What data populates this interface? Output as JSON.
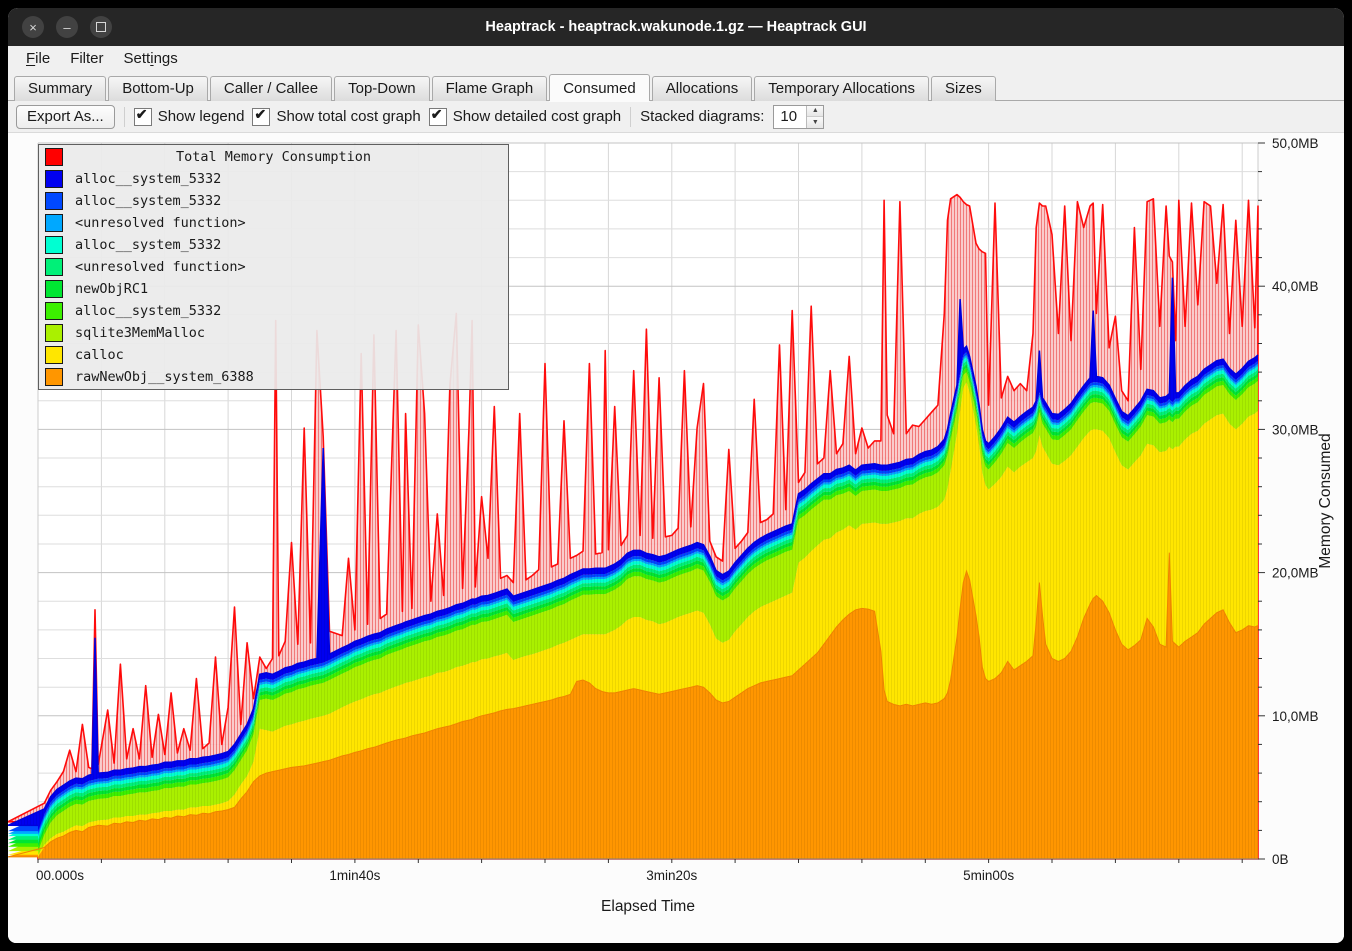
{
  "window": {
    "title": "Heaptrack - heaptrack.wakunode.1.gz — Heaptrack GUI",
    "controls": [
      {
        "name": "close",
        "glyph": "×"
      },
      {
        "name": "minimize",
        "glyph": "–"
      },
      {
        "name": "maximize",
        "glyph": ""
      }
    ]
  },
  "menu": {
    "items": [
      {
        "label": "File",
        "accel_index": 0
      },
      {
        "label": "Filter",
        "accel_index": -1
      },
      {
        "label": "Settings",
        "accel_index": 4
      }
    ]
  },
  "tabs": {
    "active": "Consumed",
    "items": [
      "Summary",
      "Bottom-Up",
      "Caller / Callee",
      "Top-Down",
      "Flame Graph",
      "Consumed",
      "Allocations",
      "Temporary Allocations",
      "Sizes"
    ]
  },
  "toolbar": {
    "export_label": "Export As...",
    "checkboxes": [
      {
        "label": "Show legend",
        "checked": true
      },
      {
        "label": "Show total cost graph",
        "checked": true
      },
      {
        "label": "Show detailed cost graph",
        "checked": true
      }
    ],
    "stacked_label": "Stacked diagrams:",
    "stacked_value": "10"
  },
  "chart_data": {
    "type": "area",
    "stacked": true,
    "xlabel": "Elapsed Time",
    "ylabel": "Memory Consumed",
    "xlim": [
      0,
      385
    ],
    "ylim": [
      0,
      50
    ],
    "x_tick_seconds": [
      0,
      100,
      200,
      300
    ],
    "x_tick_labels": [
      "00.000s",
      "1min40s",
      "3min20s",
      "5min00s"
    ],
    "x_minor_interval_s": 20,
    "y_tick_labels": [
      "0B",
      "10,0MB",
      "20,0MB",
      "30,0MB",
      "40,0MB",
      "50,0MB"
    ],
    "y_major_mb": 10,
    "y_minor_mb": 2,
    "grid": true,
    "legend_position": "top-left",
    "legend": [
      {
        "label": "Total Memory Consumption",
        "color": "#ff0000",
        "is_title": true
      },
      {
        "label": "alloc__system_5332",
        "color": "#0000f0"
      },
      {
        "label": "alloc__system_5332",
        "color": "#0048ff"
      },
      {
        "label": "<unresolved function>",
        "color": "#00a8ff"
      },
      {
        "label": "alloc__system_5332",
        "color": "#00ffd2"
      },
      {
        "label": "<unresolved function>",
        "color": "#00f078"
      },
      {
        "label": "newObjRC1",
        "color": "#00e632"
      },
      {
        "label": "alloc__system_5332",
        "color": "#3cf000"
      },
      {
        "label": "sqlite3MemMalloc",
        "color": "#aaf000"
      },
      {
        "label": "calloc",
        "color": "#ffe600"
      },
      {
        "label": "rawNewObj__system_6388",
        "color": "#ff9600"
      }
    ],
    "x": [
      0,
      2,
      4,
      6,
      8,
      10,
      12,
      14,
      16,
      17,
      18,
      19,
      22,
      24,
      26,
      28,
      30,
      32,
      34,
      36,
      38,
      40,
      42,
      44,
      46,
      48,
      50,
      52,
      54,
      56,
      58,
      60,
      62,
      64,
      66,
      68,
      70,
      72,
      74,
      75,
      76,
      78,
      80,
      82,
      84,
      86,
      88,
      90,
      92,
      96,
      98,
      100,
      102,
      104,
      106,
      108,
      110,
      113,
      115,
      116,
      118,
      120,
      122,
      124,
      126,
      128,
      130,
      132,
      134,
      136,
      137,
      138,
      140,
      142,
      144,
      146,
      148,
      150,
      152,
      154,
      156,
      158,
      160,
      162,
      164,
      166,
      168,
      170,
      172,
      174,
      176,
      178,
      179,
      180,
      182,
      184,
      186,
      188,
      190,
      192,
      194,
      196,
      198,
      200,
      202,
      204,
      206,
      208,
      210,
      212,
      214,
      216,
      218,
      220,
      222,
      224,
      226,
      228,
      230,
      232,
      234,
      236,
      238,
      240,
      242,
      244,
      246,
      248,
      250,
      252,
      254,
      256,
      258,
      260,
      262,
      264,
      266,
      267,
      268,
      270,
      272,
      274,
      276,
      278,
      280,
      282,
      284,
      286,
      287,
      288,
      290,
      291,
      292,
      293,
      294,
      296,
      297,
      298,
      299,
      300,
      302,
      304,
      306,
      308,
      310,
      312,
      314,
      315,
      316,
      317,
      318,
      320,
      322,
      324,
      326,
      328,
      330,
      332,
      333,
      334,
      336,
      338,
      340,
      342,
      344,
      346,
      348,
      350,
      352,
      354,
      356,
      357,
      358,
      359,
      360,
      362,
      364,
      366,
      368,
      370,
      372,
      374,
      376,
      378,
      380,
      382,
      384,
      385
    ],
    "stack_series": [
      {
        "name": "rawNewObj__system_6388",
        "color": "#ff9600",
        "values": [
          0.15,
          0.8,
          1.2,
          1.45,
          1.6,
          1.85,
          2.0,
          1.9,
          2.2,
          2.25,
          2.3,
          2.35,
          2.3,
          2.5,
          2.45,
          2.6,
          2.55,
          2.7,
          2.65,
          2.8,
          2.75,
          2.9,
          2.85,
          3.0,
          2.95,
          3.1,
          3.05,
          3.2,
          3.15,
          3.3,
          3.35,
          3.45,
          3.6,
          4.2,
          4.7,
          5.4,
          5.8,
          6.0,
          6.1,
          6.15,
          6.2,
          6.3,
          6.4,
          6.45,
          6.5,
          6.6,
          6.7,
          6.8,
          6.9,
          7.2,
          7.3,
          7.45,
          7.55,
          7.7,
          7.8,
          7.95,
          8.1,
          8.3,
          8.4,
          8.45,
          8.6,
          8.7,
          8.8,
          8.95,
          9.1,
          9.2,
          9.3,
          9.45,
          9.6,
          9.7,
          9.75,
          9.85,
          10.0,
          10.1,
          10.2,
          10.35,
          10.45,
          10.5,
          10.6,
          10.7,
          10.8,
          10.9,
          11.0,
          11.1,
          11.25,
          11.35,
          11.5,
          12.4,
          12.5,
          12.3,
          11.9,
          11.7,
          11.65,
          11.6,
          11.6,
          11.7,
          11.8,
          11.9,
          11.8,
          11.7,
          11.6,
          11.5,
          11.6,
          11.7,
          11.8,
          11.9,
          12.0,
          12.1,
          12.0,
          11.6,
          11.1,
          10.9,
          11.0,
          11.3,
          11.6,
          11.9,
          12.1,
          12.3,
          12.4,
          12.5,
          12.6,
          12.7,
          12.8,
          13.2,
          13.6,
          14.0,
          14.4,
          15.0,
          15.6,
          16.2,
          16.7,
          17.1,
          17.4,
          17.5,
          17.45,
          17.3,
          14.5,
          11.8,
          11.0,
          10.8,
          10.7,
          10.8,
          10.7,
          10.8,
          10.9,
          10.8,
          10.9,
          11.2,
          11.6,
          12.5,
          15.5,
          17.5,
          19.3,
          20.1,
          19.5,
          17.0,
          15.5,
          13.4,
          12.6,
          12.4,
          12.6,
          13.0,
          13.8,
          13.2,
          13.5,
          13.8,
          14.2,
          16.5,
          19.3,
          17.0,
          15.0,
          14.0,
          13.8,
          14.0,
          14.5,
          15.5,
          16.8,
          17.8,
          18.2,
          18.4,
          18.0,
          17.2,
          16.0,
          15.0,
          14.6,
          14.9,
          15.3,
          16.8,
          16.2,
          15.0,
          14.8,
          21.4,
          15.2,
          15.0,
          14.8,
          15.2,
          15.5,
          15.8,
          16.4,
          16.8,
          17.2,
          17.4,
          16.5,
          15.8,
          16.0,
          16.3,
          16.2,
          16.3
        ]
      },
      {
        "name": "calloc",
        "color": "#ffe600",
        "values": [
          0.15,
          0.2,
          0.25,
          0.3,
          0.3,
          0.3,
          0.35,
          0.4,
          0.35,
          0.35,
          0.35,
          0.35,
          0.45,
          0.4,
          0.45,
          0.4,
          0.45,
          0.4,
          0.45,
          0.4,
          0.5,
          0.45,
          0.5,
          0.45,
          0.5,
          0.5,
          0.55,
          0.5,
          0.55,
          0.5,
          0.55,
          0.6,
          0.9,
          1.0,
          1.1,
          1.4,
          3.3,
          3.0,
          2.8,
          2.85,
          2.9,
          3.0,
          3.0,
          3.1,
          3.15,
          3.2,
          3.2,
          3.2,
          3.25,
          3.4,
          3.5,
          3.55,
          3.6,
          3.65,
          3.7,
          3.65,
          3.7,
          3.75,
          3.8,
          3.85,
          3.8,
          3.85,
          3.9,
          3.85,
          3.9,
          3.85,
          3.9,
          3.95,
          3.9,
          3.95,
          4.0,
          3.9,
          3.95,
          3.9,
          3.95,
          3.9,
          3.95,
          3.4,
          3.45,
          3.5,
          3.5,
          3.55,
          3.6,
          3.65,
          3.7,
          3.75,
          3.8,
          3.1,
          3.2,
          3.4,
          3.8,
          4.0,
          4.05,
          4.2,
          4.4,
          4.6,
          4.9,
          5.0,
          5.1,
          5.0,
          5.0,
          4.9,
          4.9,
          5.0,
          5.1,
          5.15,
          5.2,
          5.25,
          5.2,
          4.8,
          4.3,
          4.2,
          4.3,
          4.6,
          4.8,
          5.0,
          5.2,
          5.3,
          5.4,
          5.5,
          5.6,
          5.7,
          5.8,
          7.5,
          7.45,
          7.5,
          7.5,
          7.3,
          6.8,
          6.6,
          6.3,
          6.2,
          5.6,
          5.9,
          6.0,
          6.2,
          8.9,
          11.6,
          12.4,
          12.7,
          12.9,
          13.0,
          13.1,
          13.3,
          13.4,
          13.6,
          13.7,
          13.9,
          14.3,
          14.6,
          14.2,
          13.8,
          13.6,
          13.2,
          13.1,
          13.3,
          13.4,
          13.6,
          13.5,
          13.4,
          13.6,
          13.7,
          13.6,
          13.8,
          13.9,
          13.9,
          13.8,
          12.0,
          10.3,
          11.8,
          13.4,
          13.6,
          13.7,
          13.8,
          13.7,
          13.3,
          12.6,
          12.1,
          11.8,
          11.6,
          11.9,
          12.2,
          12.4,
          12.5,
          12.6,
          12.8,
          12.9,
          12.2,
          12.7,
          13.4,
          13.7,
          7.4,
          13.4,
          13.8,
          14.0,
          14.1,
          14.2,
          14.1,
          14.0,
          13.9,
          13.8,
          13.7,
          13.9,
          14.2,
          14.4,
          14.6,
          14.9,
          15.0
        ]
      },
      {
        "name": "sqlite3MemMalloc",
        "color": "#aaf000",
        "values": [
          0.25,
          0.7,
          1.1,
          1.3,
          1.45,
          1.5,
          1.5,
          1.5,
          1.5,
          1.5,
          1.5,
          1.5,
          1.5,
          1.5,
          1.5,
          1.5,
          1.55,
          1.55,
          1.55,
          1.55,
          1.55,
          1.6,
          1.6,
          1.6,
          1.6,
          1.6,
          1.6,
          1.6,
          1.65,
          1.65,
          1.65,
          1.65,
          1.7,
          1.7,
          1.8,
          1.9,
          2.0,
          2.2,
          2.2,
          2.2,
          2.2,
          2.25,
          2.25,
          2.3,
          2.3,
          2.3,
          2.3,
          2.3,
          2.35,
          2.35,
          2.35,
          2.4,
          2.4,
          2.4,
          2.4,
          2.4,
          2.45,
          2.45,
          2.45,
          2.45,
          2.5,
          2.5,
          2.5,
          2.5,
          2.5,
          2.55,
          2.55,
          2.55,
          2.55,
          2.6,
          2.6,
          2.6,
          2.6,
          2.6,
          2.6,
          2.65,
          2.65,
          2.65,
          2.65,
          2.65,
          2.7,
          2.7,
          2.7,
          2.7,
          2.7,
          2.7,
          2.75,
          2.75,
          2.75,
          2.75,
          2.8,
          2.8,
          2.8,
          2.8,
          2.8,
          2.8,
          2.85,
          2.85,
          2.85,
          2.85,
          2.85,
          2.9,
          2.9,
          2.9,
          2.9,
          2.9,
          2.9,
          2.95,
          2.95,
          2.95,
          2.95,
          2.95,
          3.0,
          3.0,
          3.0,
          3.0,
          3.0,
          3.0,
          3.05,
          3.05,
          3.05,
          3.05,
          3.0,
          3.0,
          2.95,
          2.9,
          2.85,
          2.8,
          2.7,
          2.6,
          2.5,
          2.4,
          2.35,
          2.3,
          2.3,
          2.3,
          2.3,
          2.3,
          2.3,
          2.3,
          2.3,
          2.3,
          2.35,
          2.35,
          2.35,
          2.35,
          2.4,
          2.4,
          2.3,
          2.2,
          1.6,
          1.2,
          0.9,
          0.7,
          0.7,
          0.9,
          1.0,
          1.2,
          1.3,
          1.4,
          1.5,
          1.6,
          1.65,
          1.7,
          1.7,
          1.75,
          1.75,
          1.7,
          1.6,
          1.6,
          1.65,
          1.7,
          1.75,
          1.8,
          1.8,
          1.85,
          1.85,
          1.9,
          1.9,
          1.9,
          1.9,
          1.9,
          1.95,
          1.95,
          1.95,
          1.95,
          2.0,
          2.0,
          2.0,
          2.0,
          2.0,
          1.9,
          1.9,
          1.95,
          1.95,
          1.95,
          1.95,
          2.0,
          2.0,
          2.0,
          2.0,
          2.0,
          2.05,
          2.05,
          2.05,
          2.05,
          2.1,
          2.1
        ]
      },
      {
        "name": "alloc__system_5332",
        "color": "#3cf000",
        "constant": 0.3
      },
      {
        "name": "newObjRC1",
        "color": "#00e632",
        "constant": 0.25
      },
      {
        "name": "<unresolved function>",
        "color": "#00f078",
        "constant": 0.25
      },
      {
        "name": "alloc__system_5332",
        "color": "#00ffd2",
        "constant": 0.25
      },
      {
        "name": "<unresolved function>",
        "color": "#00a8ff",
        "constant": 0.15
      },
      {
        "name": "alloc__system_5332",
        "color": "#0048ff",
        "constant": 0.2
      },
      {
        "name": "alloc__system_5332",
        "color": "#0000f0",
        "base": 0.4,
        "overrides": {
          "18": 9.9,
          "90": 15.0,
          "291": 5.2,
          "316": 2.9,
          "333": 5.0,
          "358": 8.7
        }
      }
    ],
    "total_series": {
      "name": "Total Memory Consumption",
      "color": "#ff0000",
      "values": [
        2.6,
        3.9,
        4.8,
        5.4,
        6.1,
        7.6,
        6.1,
        9.4,
        6.4,
        6.3,
        17.4,
        6.6,
        10.4,
        6.7,
        13.6,
        7.0,
        9.1,
        7.0,
        12.1,
        7.1,
        10.1,
        7.3,
        11.6,
        7.4,
        9.1,
        7.6,
        12.6,
        7.7,
        8.1,
        14.1,
        8.0,
        10.6,
        17.6,
        9.4,
        15.1,
        11.2,
        14.1,
        13.3,
        14.0,
        37.6,
        14.2,
        15.2,
        22.1,
        15.0,
        30.1,
        15.1,
        36.9,
        29.5,
        15.9,
        15.6,
        21.0,
        16.0,
        35.3,
        16.4,
        36.6,
        16.8,
        17.1,
        36.9,
        17.3,
        31.1,
        17.5,
        37.3,
        31.1,
        18.0,
        24.1,
        18.4,
        33.1,
        38.1,
        18.9,
        30.1,
        37.6,
        19.0,
        25.3,
        21.0,
        31.6,
        19.6,
        19.8,
        19.3,
        31.1,
        19.5,
        19.8,
        20.2,
        34.6,
        20.4,
        20.6,
        30.6,
        21.0,
        21.2,
        21.5,
        34.6,
        21.3,
        21.4,
        35.5,
        21.6,
        31.6,
        21.9,
        22.6,
        34.1,
        22.6,
        37.0,
        22.4,
        33.6,
        22.5,
        22.6,
        23.1,
        34.1,
        23.2,
        30.1,
        33.2,
        22.2,
        21.1,
        20.8,
        28.6,
        21.7,
        22.2,
        22.8,
        32.1,
        23.5,
        23.7,
        24.1,
        35.9,
        24.4,
        38.3,
        26.3,
        27.0,
        38.6,
        27.6,
        28.0,
        34.1,
        28.3,
        29.0,
        35.1,
        28.3,
        30.1,
        28.7,
        29.2,
        29.2,
        46.0,
        31.0,
        29.7,
        45.9,
        29.7,
        30.3,
        30.2,
        30.7,
        31.2,
        31.7,
        38.1,
        44.6,
        46.1,
        46.4,
        46.2,
        45.9,
        45.7,
        45.6,
        43.0,
        42.6,
        42.4,
        42.3,
        31.7,
        45.8,
        32.2,
        33.7,
        32.7,
        33.2,
        32.7,
        36.7,
        44.1,
        45.8,
        45.6,
        45.6,
        43.6,
        36.7,
        45.6,
        36.2,
        45.9,
        44.1,
        45.6,
        45.8,
        38.1,
        45.7,
        35.7,
        37.9,
        32.7,
        32.0,
        44.1,
        34.2,
        45.9,
        46.1,
        37.2,
        45.6,
        42.1,
        41.7,
        36.2,
        46.0,
        37.2,
        45.8,
        38.7,
        45.9,
        45.6,
        40.2,
        45.7,
        36.7,
        44.6,
        37.2,
        46.0,
        37.1,
        45.6
      ]
    }
  }
}
